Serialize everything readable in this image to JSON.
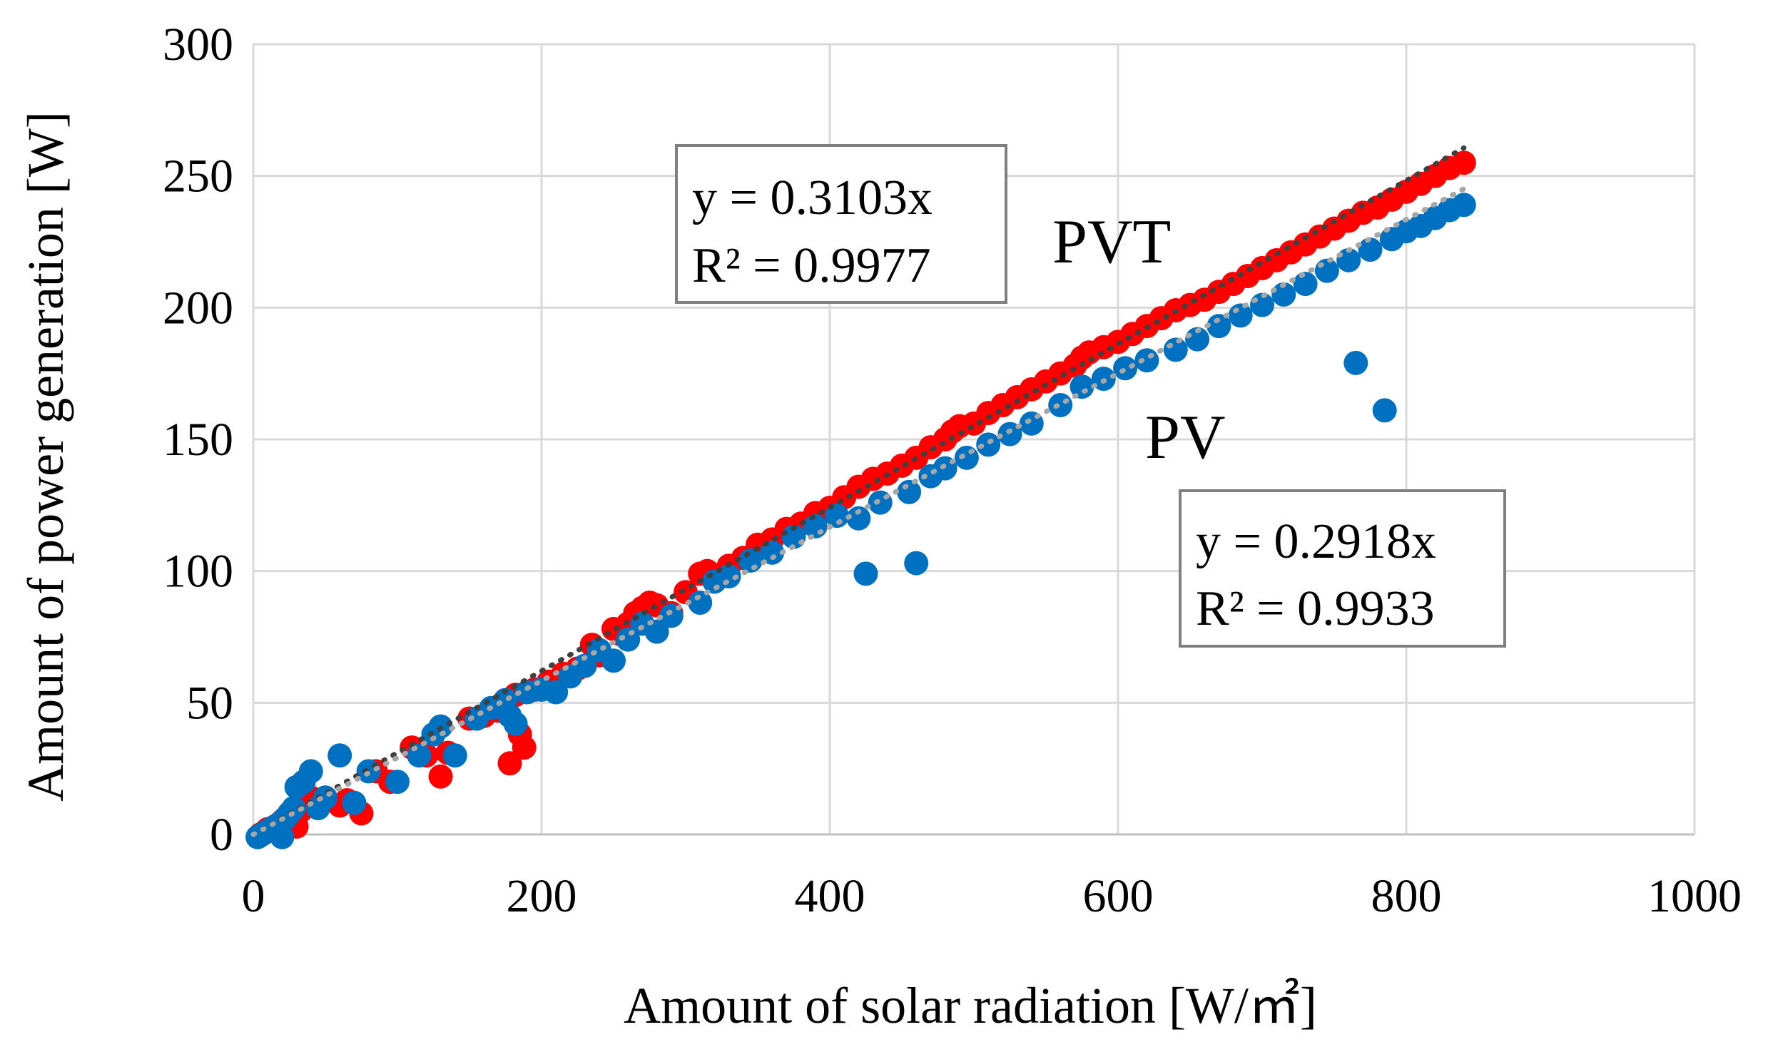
{
  "chart_data": {
    "type": "scatter",
    "title": "",
    "xlabel": "Amount  of solar  radiation  [W/㎡]",
    "ylabel": "Amount  of power generation  [W]",
    "xlim": [
      0,
      1000
    ],
    "ylim": [
      0,
      300
    ],
    "x_ticks": [
      0,
      200,
      400,
      600,
      800,
      1000
    ],
    "y_ticks": [
      0,
      50,
      100,
      150,
      200,
      250,
      300
    ],
    "x_tick_labels": [
      "0",
      "200",
      "400",
      "600",
      "800",
      "1000"
    ],
    "y_tick_labels": [
      "0",
      "50",
      "100",
      "150",
      "200",
      "250",
      "300"
    ],
    "grid": true,
    "series": [
      {
        "name": "PVT",
        "color": "#ff0000",
        "trendline_color": "#404040",
        "trend_slope": 0.3103,
        "label": "PVT",
        "equation": "y = 0.3103x",
        "r_squared": "R² = 0.9977",
        "points": [
          [
            5,
            0
          ],
          [
            8,
            1
          ],
          [
            10,
            2
          ],
          [
            13,
            2
          ],
          [
            15,
            3
          ],
          [
            18,
            4
          ],
          [
            20,
            5
          ],
          [
            22,
            6
          ],
          [
            25,
            7
          ],
          [
            30,
            3
          ],
          [
            33,
            9
          ],
          [
            36,
            12
          ],
          [
            40,
            14
          ],
          [
            45,
            12
          ],
          [
            50,
            14
          ],
          [
            60,
            11
          ],
          [
            65,
            13
          ],
          [
            75,
            8
          ],
          [
            85,
            24
          ],
          [
            95,
            20
          ],
          [
            110,
            33
          ],
          [
            120,
            30
          ],
          [
            130,
            22
          ],
          [
            135,
            31
          ],
          [
            150,
            44
          ],
          [
            160,
            45
          ],
          [
            170,
            47
          ],
          [
            175,
            51
          ],
          [
            178,
            27
          ],
          [
            182,
            53
          ],
          [
            185,
            38
          ],
          [
            188,
            33
          ],
          [
            195,
            55
          ],
          [
            205,
            58
          ],
          [
            215,
            61
          ],
          [
            225,
            63
          ],
          [
            235,
            72
          ],
          [
            240,
            68
          ],
          [
            250,
            78
          ],
          [
            255,
            76
          ],
          [
            260,
            80
          ],
          [
            265,
            84
          ],
          [
            270,
            86
          ],
          [
            275,
            88
          ],
          [
            280,
            87
          ],
          [
            290,
            84
          ],
          [
            300,
            92
          ],
          [
            310,
            99
          ],
          [
            315,
            100
          ],
          [
            320,
            97
          ],
          [
            330,
            102
          ],
          [
            340,
            105
          ],
          [
            350,
            110
          ],
          [
            355,
            109
          ],
          [
            360,
            112
          ],
          [
            370,
            116
          ],
          [
            380,
            118
          ],
          [
            390,
            122
          ],
          [
            400,
            124
          ],
          [
            410,
            128
          ],
          [
            420,
            132
          ],
          [
            430,
            135
          ],
          [
            440,
            137
          ],
          [
            450,
            140
          ],
          [
            460,
            143
          ],
          [
            470,
            147
          ],
          [
            480,
            150
          ],
          [
            485,
            153
          ],
          [
            490,
            155
          ],
          [
            500,
            156
          ],
          [
            510,
            160
          ],
          [
            520,
            163
          ],
          [
            530,
            166
          ],
          [
            540,
            169
          ],
          [
            550,
            172
          ],
          [
            560,
            175
          ],
          [
            570,
            178
          ],
          [
            575,
            181
          ],
          [
            580,
            183
          ],
          [
            590,
            185
          ],
          [
            600,
            187
          ],
          [
            610,
            190
          ],
          [
            620,
            193
          ],
          [
            630,
            196
          ],
          [
            640,
            199
          ],
          [
            650,
            201
          ],
          [
            660,
            203
          ],
          [
            670,
            206
          ],
          [
            680,
            209
          ],
          [
            690,
            212
          ],
          [
            700,
            215
          ],
          [
            710,
            218
          ],
          [
            720,
            221
          ],
          [
            730,
            224
          ],
          [
            740,
            227
          ],
          [
            750,
            230
          ],
          [
            760,
            233
          ],
          [
            770,
            236
          ],
          [
            780,
            238
          ],
          [
            790,
            241
          ],
          [
            800,
            244
          ],
          [
            810,
            247
          ],
          [
            820,
            250
          ],
          [
            830,
            253
          ],
          [
            840,
            255
          ]
        ]
      },
      {
        "name": "PV",
        "color": "#0070c0",
        "trendline_color": "#a6a6a6",
        "trend_slope": 0.2918,
        "label": "PV",
        "equation": "y = 0.2918x",
        "r_squared": "R² = 0.9933",
        "points": [
          [
            3,
            -1
          ],
          [
            6,
            0
          ],
          [
            9,
            1
          ],
          [
            12,
            2
          ],
          [
            15,
            3
          ],
          [
            18,
            4
          ],
          [
            20,
            -1
          ],
          [
            22,
            6
          ],
          [
            25,
            8
          ],
          [
            28,
            10
          ],
          [
            30,
            18
          ],
          [
            35,
            20
          ],
          [
            40,
            24
          ],
          [
            45,
            10
          ],
          [
            50,
            14
          ],
          [
            60,
            30
          ],
          [
            70,
            12
          ],
          [
            80,
            24
          ],
          [
            100,
            20
          ],
          [
            115,
            30
          ],
          [
            125,
            38
          ],
          [
            130,
            41
          ],
          [
            140,
            30
          ],
          [
            155,
            44
          ],
          [
            165,
            48
          ],
          [
            175,
            51
          ],
          [
            178,
            45
          ],
          [
            182,
            42
          ],
          [
            190,
            54
          ],
          [
            200,
            55
          ],
          [
            210,
            54
          ],
          [
            220,
            60
          ],
          [
            230,
            64
          ],
          [
            240,
            70
          ],
          [
            250,
            66
          ],
          [
            260,
            74
          ],
          [
            270,
            80
          ],
          [
            280,
            77
          ],
          [
            290,
            83
          ],
          [
            310,
            88
          ],
          [
            320,
            96
          ],
          [
            330,
            98
          ],
          [
            345,
            104
          ],
          [
            360,
            107
          ],
          [
            375,
            113
          ],
          [
            390,
            117
          ],
          [
            405,
            121
          ],
          [
            420,
            120
          ],
          [
            425,
            99
          ],
          [
            435,
            126
          ],
          [
            455,
            130
          ],
          [
            460,
            103
          ],
          [
            470,
            136
          ],
          [
            480,
            139
          ],
          [
            495,
            143
          ],
          [
            510,
            148
          ],
          [
            525,
            152
          ],
          [
            540,
            156
          ],
          [
            560,
            163
          ],
          [
            575,
            170
          ],
          [
            590,
            173
          ],
          [
            605,
            177
          ],
          [
            620,
            180
          ],
          [
            640,
            184
          ],
          [
            655,
            188
          ],
          [
            670,
            193
          ],
          [
            685,
            197
          ],
          [
            700,
            201
          ],
          [
            715,
            205
          ],
          [
            730,
            209
          ],
          [
            745,
            214
          ],
          [
            760,
            218
          ],
          [
            765,
            179
          ],
          [
            775,
            222
          ],
          [
            785,
            161
          ],
          [
            790,
            226
          ],
          [
            800,
            229
          ],
          [
            810,
            231
          ],
          [
            820,
            234
          ],
          [
            830,
            237
          ],
          [
            840,
            239
          ]
        ]
      }
    ]
  }
}
